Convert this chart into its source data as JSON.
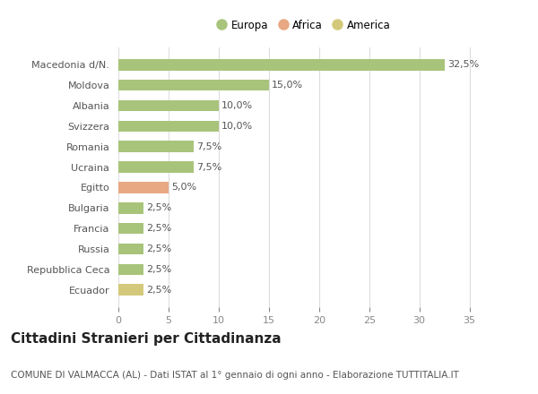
{
  "categories": [
    "Ecuador",
    "Repubblica Ceca",
    "Russia",
    "Francia",
    "Bulgaria",
    "Egitto",
    "Ucraina",
    "Romania",
    "Svizzera",
    "Albania",
    "Moldova",
    "Macedonia d/N."
  ],
  "values": [
    2.5,
    2.5,
    2.5,
    2.5,
    2.5,
    5.0,
    7.5,
    7.5,
    10.0,
    10.0,
    15.0,
    32.5
  ],
  "colors": [
    "#d4c97a",
    "#a8c47a",
    "#a8c47a",
    "#a8c47a",
    "#a8c47a",
    "#e8a882",
    "#a8c47a",
    "#a8c47a",
    "#a8c47a",
    "#a8c47a",
    "#a8c47a",
    "#a8c47a"
  ],
  "legend": [
    {
      "label": "Europa",
      "color": "#a8c47a"
    },
    {
      "label": "Africa",
      "color": "#e8a882"
    },
    {
      "label": "America",
      "color": "#d4c97a"
    }
  ],
  "xlim": [
    0,
    37
  ],
  "xticks": [
    0,
    5,
    10,
    15,
    20,
    25,
    30,
    35
  ],
  "title": "Cittadini Stranieri per Cittadinanza",
  "subtitle": "COMUNE DI VALMACCA (AL) - Dati ISTAT al 1° gennaio di ogni anno - Elaborazione TUTTITALIA.IT",
  "background_color": "#ffffff",
  "bar_height": 0.55,
  "label_fontsize": 8.0,
  "tick_fontsize": 8.0,
  "title_fontsize": 11,
  "subtitle_fontsize": 7.5
}
